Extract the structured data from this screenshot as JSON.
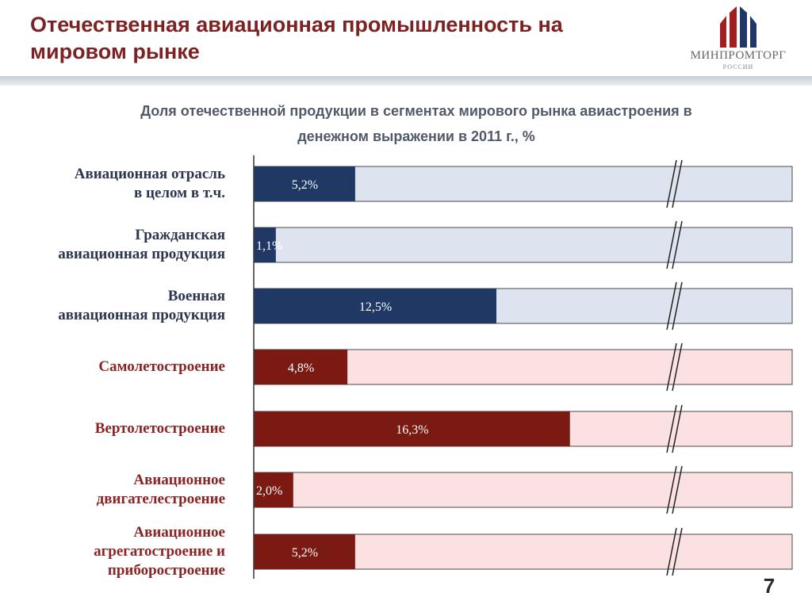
{
  "header": {
    "title_line1": "Отечественная авиационная промышленность на",
    "title_line2": "мировом рынке",
    "logo_text": "МИНПРОМТОРГ",
    "logo_subtext": "РОССИИ"
  },
  "colors": {
    "title": "#7d2222",
    "navy_fill": "#1f3864",
    "navy_track": "#dde4ef",
    "navy_label": "#2c3550",
    "red_fill": "#7b1a12",
    "red_track": "#fbe1e1",
    "red_label": "#8b2424",
    "logo_red": "#a21f1f",
    "logo_navy": "#21376a"
  },
  "chart_data": {
    "type": "bar",
    "orientation": "horizontal",
    "title_line1": "Доля отечественной продукции в сегментах мирового рынка авиастроения в",
    "title_line2": "денежном выражении в 2011 г., %",
    "categories": [
      [
        "Авиационная отрасль",
        "в целом в т.ч."
      ],
      [
        "Гражданская",
        "авиационная продукция"
      ],
      [
        "Военная",
        "авиационная продукция"
      ],
      [
        "Самолетостроение"
      ],
      [
        "Вертолетостроение"
      ],
      [
        "Авиационное",
        "двигателестроение"
      ],
      [
        "Авиационное",
        "агрегатостроение и",
        "приборостроение"
      ]
    ],
    "values": [
      5.2,
      1.1,
      12.5,
      4.8,
      16.3,
      2.0,
      5.2
    ],
    "data_labels": [
      "5,2%",
      "1,1%",
      "12,5%",
      "4,8%",
      "16,3%",
      "2,0%",
      "5,2%"
    ],
    "groups": [
      "navy",
      "navy",
      "navy",
      "red",
      "red",
      "red",
      "red"
    ],
    "axis_broken": true,
    "xlim": [
      0,
      30
    ],
    "grid": false,
    "legend": "none"
  },
  "footer": {
    "page_number": "7"
  }
}
